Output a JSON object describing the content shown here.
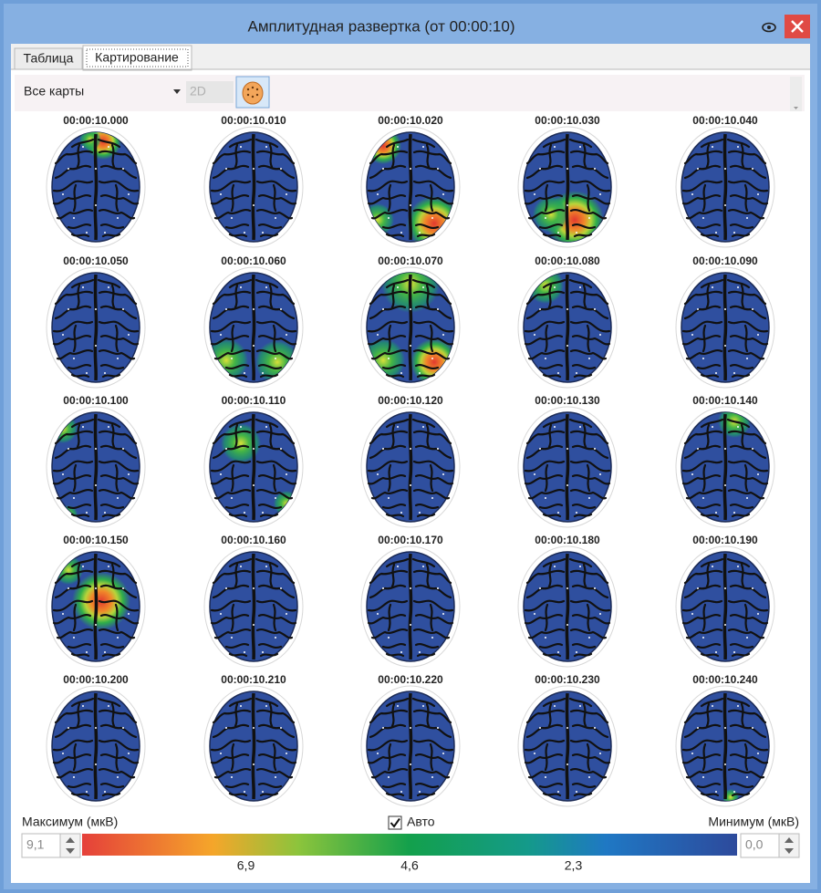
{
  "window": {
    "title": "Амплитудная развертка (от 00:00:10)"
  },
  "tabs": [
    "Таблица",
    "Картирование"
  ],
  "toolbar": {
    "map_select": "Все карты",
    "mode": "2D"
  },
  "maps": [
    "00:00:10.000",
    "00:00:10.010",
    "00:00:10.020",
    "00:00:10.030",
    "00:00:10.040",
    "00:00:10.050",
    "00:00:10.060",
    "00:00:10.070",
    "00:00:10.080",
    "00:00:10.090",
    "00:00:10.100",
    "00:00:10.110",
    "00:00:10.120",
    "00:00:10.130",
    "00:00:10.140",
    "00:00:10.150",
    "00:00:10.160",
    "00:00:10.170",
    "00:00:10.180",
    "00:00:10.190",
    "00:00:10.200",
    "00:00:10.210",
    "00:00:10.220",
    "00:00:10.230",
    "00:00:10.240"
  ],
  "scale": {
    "max_label": "Максимум (мкВ)",
    "max_value": "9,1",
    "auto_label": "Авто",
    "min_label": "Минимум (мкВ)",
    "min_value": "0,0",
    "ticks": [
      "6,9",
      "4,6",
      "2,3"
    ]
  }
}
